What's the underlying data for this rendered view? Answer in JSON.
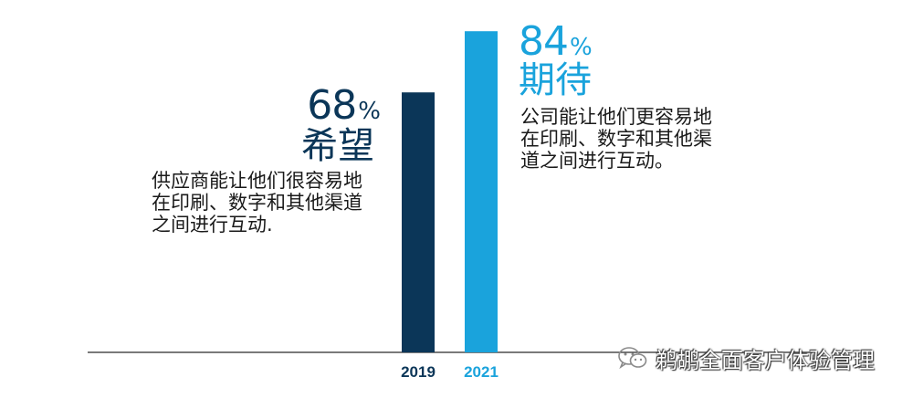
{
  "chart_data": {
    "type": "bar",
    "categories": [
      "2019",
      "2021"
    ],
    "values": [
      68,
      84
    ],
    "ylim": [
      0,
      100
    ],
    "colors": [
      "#0b3658",
      "#1aa3dc"
    ],
    "annotations": [
      {
        "value_text": "68",
        "unit": "%",
        "word": "希望",
        "description": [
          "供应商能让他们很容易地",
          "在印刷、数字和其他渠道",
          "之间进行互动."
        ]
      },
      {
        "value_text": "84",
        "unit": "%",
        "word": "期待",
        "description": [
          "公司能让他们更容易地",
          "在印刷、数字和其他渠",
          "道之间进行互动。"
        ]
      }
    ]
  },
  "watermark": {
    "text": "鹈鹕全面客户体验管理",
    "icon": "wechat-icon"
  }
}
